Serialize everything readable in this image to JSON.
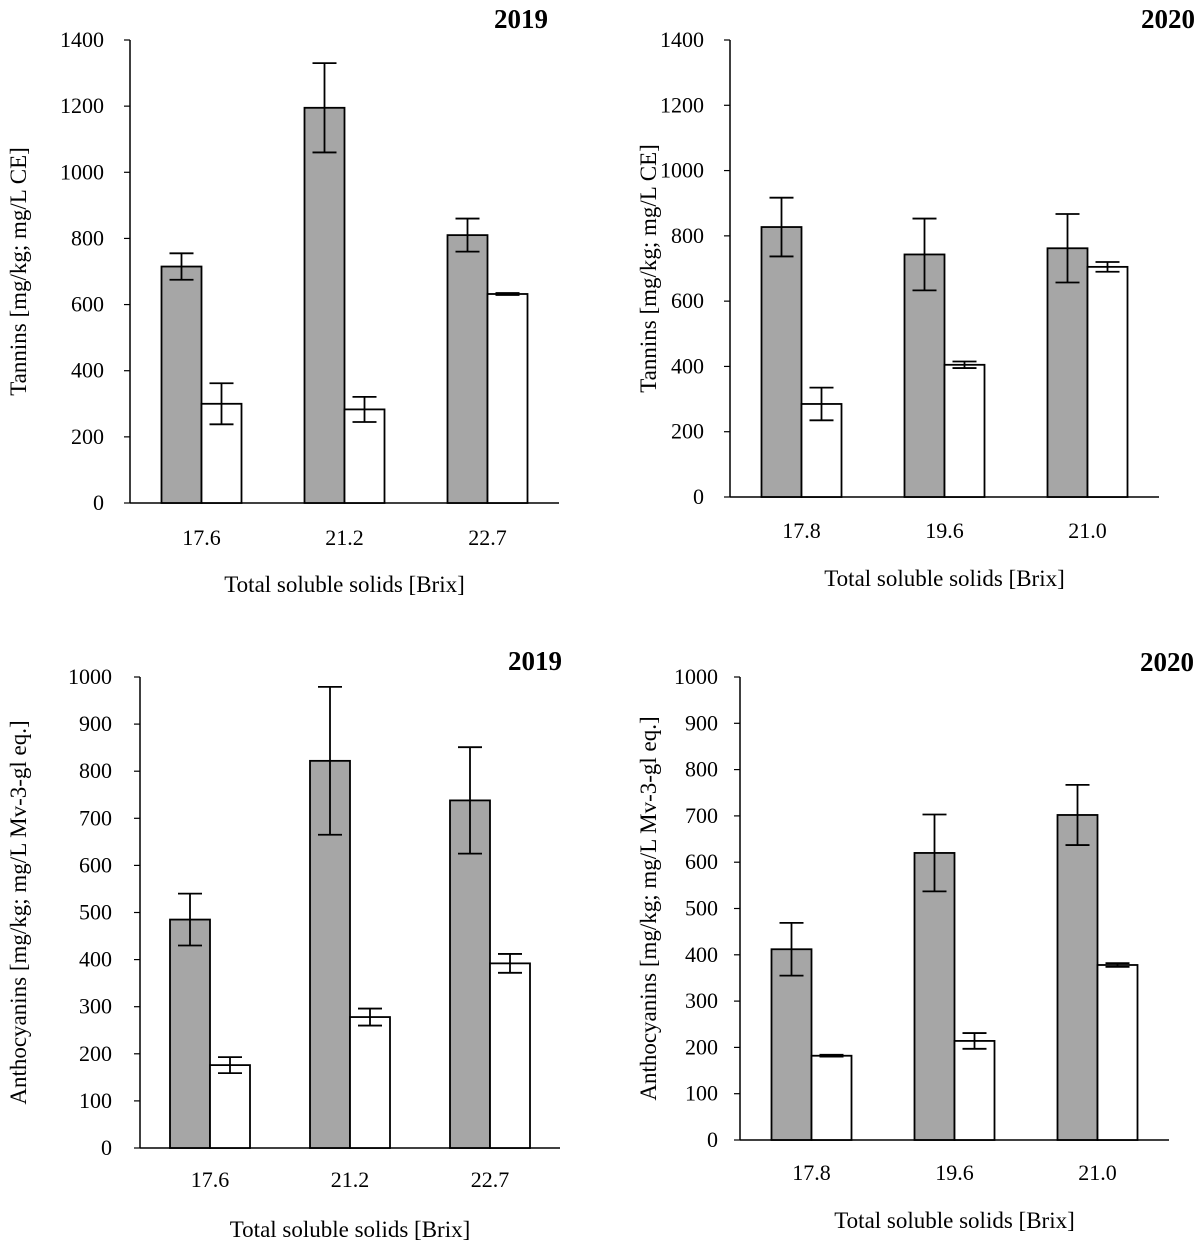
{
  "chart_data": [
    {
      "type": "bar",
      "title": "2019",
      "xlabel": "Total soluble solids [Brix]",
      "ylabel": "Tannins [mg/kg; mg/L CE]",
      "ylim": [
        0,
        1400
      ],
      "yticks": [
        0,
        200,
        400,
        600,
        800,
        1000,
        1200,
        1400
      ],
      "categories": [
        "17.6",
        "21.2",
        "22.7"
      ],
      "series": [
        {
          "color": "#a6a6a6",
          "values": [
            715,
            1195,
            810
          ],
          "errors": [
            40,
            135,
            50
          ]
        },
        {
          "color": "#ffffff",
          "values": [
            300,
            283,
            632
          ],
          "errors": [
            62,
            38,
            3
          ]
        }
      ],
      "grid": false,
      "legend": "none"
    },
    {
      "type": "bar",
      "title": "2020",
      "xlabel": "Total soluble solids [Brix]",
      "ylabel": "Tannins [mg/kg; mg/L CE]",
      "ylim": [
        0,
        1400
      ],
      "yticks": [
        0,
        200,
        400,
        600,
        800,
        1000,
        1200,
        1400
      ],
      "categories": [
        "17.8",
        "19.6",
        "21.0"
      ],
      "series": [
        {
          "color": "#a6a6a6",
          "values": [
            827,
            743,
            762
          ],
          "errors": [
            90,
            110,
            105
          ]
        },
        {
          "color": "#ffffff",
          "values": [
            285,
            405,
            705
          ],
          "errors": [
            50,
            10,
            15
          ]
        }
      ],
      "grid": false,
      "legend": "none"
    },
    {
      "type": "bar",
      "title": "2019",
      "xlabel": "Total soluble solids [Brix]",
      "ylabel": "Anthocyanins [mg/kg; mg/L Mv-3-gl eq.]",
      "ylim": [
        0,
        1000
      ],
      "yticks": [
        0,
        100,
        200,
        300,
        400,
        500,
        600,
        700,
        800,
        900,
        1000
      ],
      "categories": [
        "17.6",
        "21.2",
        "22.7"
      ],
      "series": [
        {
          "color": "#a6a6a6",
          "values": [
            485,
            822,
            738
          ],
          "errors": [
            55,
            157,
            113
          ]
        },
        {
          "color": "#ffffff",
          "values": [
            176,
            278,
            392
          ],
          "errors": [
            17,
            18,
            20
          ]
        }
      ],
      "grid": false,
      "legend": "none"
    },
    {
      "type": "bar",
      "title": "2020",
      "xlabel": "Total soluble solids [Brix]",
      "ylabel": "Anthocyanins [mg/kg; mg/L Mv-3-gl eq.]",
      "ylim": [
        0,
        1000
      ],
      "yticks": [
        0,
        100,
        200,
        300,
        400,
        500,
        600,
        700,
        800,
        900,
        1000
      ],
      "categories": [
        "17.8",
        "19.6",
        "21.0"
      ],
      "series": [
        {
          "color": "#a6a6a6",
          "values": [
            412,
            620,
            702
          ],
          "errors": [
            57,
            83,
            65
          ]
        },
        {
          "color": "#ffffff",
          "values": [
            182,
            214,
            378
          ],
          "errors": [
            2,
            17,
            4
          ]
        }
      ],
      "grid": false,
      "legend": "none"
    }
  ]
}
